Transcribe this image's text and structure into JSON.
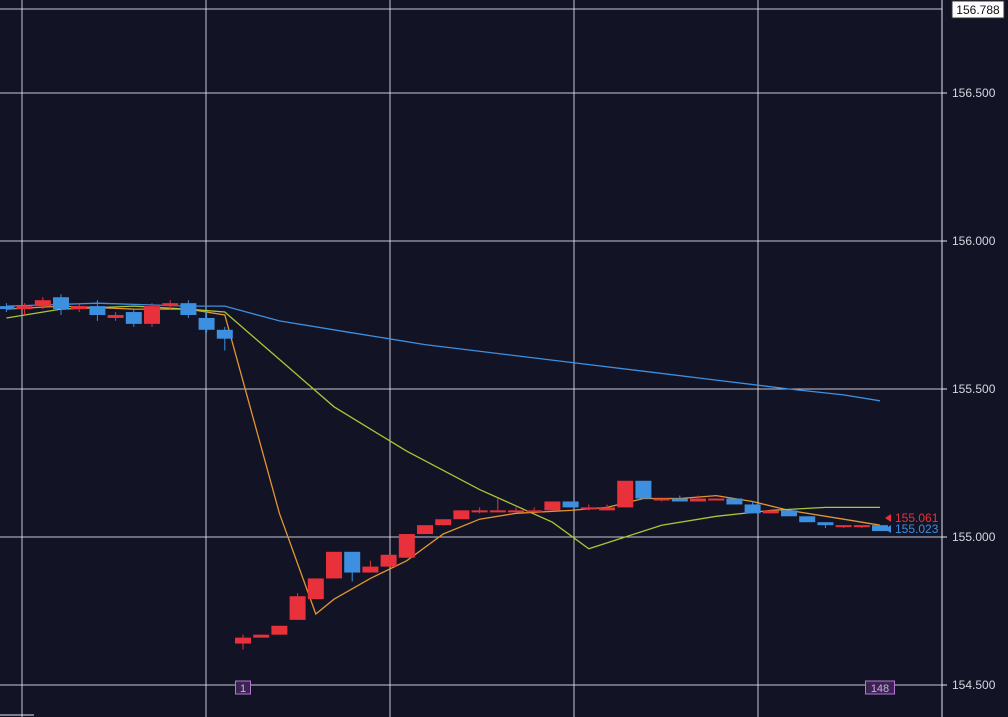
{
  "chart_data": {
    "type": "candlestick",
    "y_axis": {
      "ticks": [
        "156.500",
        "156.000",
        "155.500",
        "155.000",
        "154.500"
      ],
      "tick_values": [
        156.5,
        156.0,
        155.5,
        155.0,
        154.5
      ],
      "range": [
        154.45,
        156.788
      ],
      "top_label": "156.788",
      "position": "right"
    },
    "grid": true,
    "bar_markers": [
      {
        "label": "1",
        "index": 0
      },
      {
        "label": "148",
        "index": 35
      }
    ],
    "price_labels": [
      {
        "value": "155.061",
        "color": "#e8313a"
      },
      {
        "value": "155.023",
        "color": "#3d8fe0"
      }
    ],
    "colors": {
      "background": "#131326",
      "grid": "#e6e6ee",
      "up": "#e8313a",
      "down": "#3d8fe0",
      "ma_fast": "#e2962e",
      "ma_medium": "#a8c832",
      "ma_slow": "#3d8fe0"
    },
    "pre_gap_candles": [
      {
        "open": 155.78,
        "high": 155.79,
        "low": 155.76,
        "close": 155.77
      },
      {
        "open": 155.77,
        "high": 155.79,
        "low": 155.75,
        "close": 155.78
      },
      {
        "open": 155.78,
        "high": 155.81,
        "low": 155.77,
        "close": 155.8
      },
      {
        "open": 155.81,
        "high": 155.82,
        "low": 155.75,
        "close": 155.77
      },
      {
        "open": 155.77,
        "high": 155.79,
        "low": 155.76,
        "close": 155.78
      },
      {
        "open": 155.78,
        "high": 155.8,
        "low": 155.73,
        "close": 155.75
      },
      {
        "open": 155.74,
        "high": 155.76,
        "low": 155.73,
        "close": 155.75
      },
      {
        "open": 155.76,
        "high": 155.77,
        "low": 155.71,
        "close": 155.72
      },
      {
        "open": 155.72,
        "high": 155.79,
        "low": 155.71,
        "close": 155.78
      },
      {
        "open": 155.78,
        "high": 155.8,
        "low": 155.77,
        "close": 155.79
      },
      {
        "open": 155.79,
        "high": 155.8,
        "low": 155.74,
        "close": 155.75
      },
      {
        "open": 155.74,
        "high": 155.76,
        "low": 155.69,
        "close": 155.7
      },
      {
        "open": 155.7,
        "high": 155.71,
        "low": 155.63,
        "close": 155.67
      }
    ],
    "candles": [
      {
        "open": 154.64,
        "high": 154.67,
        "low": 154.62,
        "close": 154.66
      },
      {
        "open": 154.66,
        "high": 154.67,
        "low": 154.66,
        "close": 154.67
      },
      {
        "open": 154.67,
        "high": 154.7,
        "low": 154.67,
        "close": 154.7
      },
      {
        "open": 154.72,
        "high": 154.81,
        "low": 154.72,
        "close": 154.8
      },
      {
        "open": 154.79,
        "high": 154.86,
        "low": 154.79,
        "close": 154.86
      },
      {
        "open": 154.86,
        "high": 154.95,
        "low": 154.86,
        "close": 154.95
      },
      {
        "open": 154.95,
        "high": 154.95,
        "low": 154.85,
        "close": 154.88
      },
      {
        "open": 154.88,
        "high": 154.92,
        "low": 154.88,
        "close": 154.9
      },
      {
        "open": 154.9,
        "high": 154.93,
        "low": 154.9,
        "close": 154.94
      },
      {
        "open": 154.93,
        "high": 155.01,
        "low": 154.93,
        "close": 155.01
      },
      {
        "open": 155.01,
        "high": 155.04,
        "low": 155.01,
        "close": 155.04
      },
      {
        "open": 155.04,
        "high": 155.06,
        "low": 155.04,
        "close": 155.06
      },
      {
        "open": 155.06,
        "high": 155.09,
        "low": 155.06,
        "close": 155.09
      },
      {
        "open": 155.09,
        "high": 155.1,
        "low": 155.08,
        "close": 155.09
      },
      {
        "open": 155.09,
        "high": 155.13,
        "low": 155.09,
        "close": 155.09
      },
      {
        "open": 155.09,
        "high": 155.1,
        "low": 155.09,
        "close": 155.09
      },
      {
        "open": 155.09,
        "high": 155.1,
        "low": 155.09,
        "close": 155.09
      },
      {
        "open": 155.09,
        "high": 155.12,
        "low": 155.09,
        "close": 155.12
      },
      {
        "open": 155.12,
        "high": 155.12,
        "low": 155.1,
        "close": 155.1
      },
      {
        "open": 155.1,
        "high": 155.11,
        "low": 155.09,
        "close": 155.1
      },
      {
        "open": 155.09,
        "high": 155.11,
        "low": 155.09,
        "close": 155.1
      },
      {
        "open": 155.1,
        "high": 155.19,
        "low": 155.1,
        "close": 155.19
      },
      {
        "open": 155.19,
        "high": 155.19,
        "low": 155.13,
        "close": 155.13
      },
      {
        "open": 155.13,
        "high": 155.13,
        "low": 155.12,
        "close": 155.13
      },
      {
        "open": 155.13,
        "high": 155.14,
        "low": 155.12,
        "close": 155.12
      },
      {
        "open": 155.12,
        "high": 155.14,
        "low": 155.12,
        "close": 155.13
      },
      {
        "open": 155.13,
        "high": 155.13,
        "low": 155.13,
        "close": 155.13
      },
      {
        "open": 155.13,
        "high": 155.13,
        "low": 155.11,
        "close": 155.11
      },
      {
        "open": 155.11,
        "high": 155.12,
        "low": 155.08,
        "close": 155.08
      },
      {
        "open": 155.08,
        "high": 155.09,
        "low": 155.08,
        "close": 155.09
      },
      {
        "open": 155.09,
        "high": 155.09,
        "low": 155.07,
        "close": 155.07
      },
      {
        "open": 155.07,
        "high": 155.07,
        "low": 155.05,
        "close": 155.05
      },
      {
        "open": 155.05,
        "high": 155.05,
        "low": 155.03,
        "close": 155.04
      },
      {
        "open": 155.04,
        "high": 155.04,
        "low": 155.03,
        "close": 155.04
      },
      {
        "open": 155.04,
        "high": 155.04,
        "low": 155.03,
        "close": 155.04
      },
      {
        "open": 155.04,
        "high": 155.04,
        "low": 155.02,
        "close": 155.02
      }
    ],
    "moving_averages": [
      {
        "color_key": "ma_fast",
        "points": [
          {
            "bar": -13,
            "value": 155.77
          },
          {
            "bar": -10,
            "value": 155.78
          },
          {
            "bar": -6,
            "value": 155.77
          },
          {
            "bar": -3,
            "value": 155.77
          },
          {
            "bar": -1,
            "value": 155.75
          },
          {
            "bar": 2,
            "value": 155.08
          },
          {
            "bar": 4,
            "value": 154.74
          },
          {
            "bar": 5,
            "value": 154.79
          },
          {
            "bar": 7,
            "value": 154.86
          },
          {
            "bar": 9,
            "value": 154.92
          },
          {
            "bar": 11,
            "value": 155.01
          },
          {
            "bar": 13,
            "value": 155.06
          },
          {
            "bar": 15,
            "value": 155.08
          },
          {
            "bar": 18,
            "value": 155.09
          },
          {
            "bar": 20,
            "value": 155.1
          },
          {
            "bar": 22,
            "value": 155.13
          },
          {
            "bar": 24,
            "value": 155.13
          },
          {
            "bar": 26,
            "value": 155.14
          },
          {
            "bar": 28,
            "value": 155.12
          },
          {
            "bar": 30,
            "value": 155.09
          },
          {
            "bar": 33,
            "value": 155.06
          },
          {
            "bar": 35,
            "value": 155.04
          }
        ]
      },
      {
        "color_key": "ma_medium",
        "points": [
          {
            "bar": -13,
            "value": 155.74
          },
          {
            "bar": -10,
            "value": 155.77
          },
          {
            "bar": -6,
            "value": 155.78
          },
          {
            "bar": -3,
            "value": 155.77
          },
          {
            "bar": -1,
            "value": 155.76
          },
          {
            "bar": 2,
            "value": 155.6
          },
          {
            "bar": 5,
            "value": 155.44
          },
          {
            "bar": 9,
            "value": 155.29
          },
          {
            "bar": 13,
            "value": 155.16
          },
          {
            "bar": 17,
            "value": 155.05
          },
          {
            "bar": 19,
            "value": 154.96
          },
          {
            "bar": 21,
            "value": 155.0
          },
          {
            "bar": 23,
            "value": 155.04
          },
          {
            "bar": 26,
            "value": 155.07
          },
          {
            "bar": 29,
            "value": 155.09
          },
          {
            "bar": 32,
            "value": 155.1
          },
          {
            "bar": 35,
            "value": 155.1
          }
        ]
      },
      {
        "color_key": "ma_slow",
        "points": [
          {
            "bar": -13,
            "value": 155.78
          },
          {
            "bar": -8,
            "value": 155.79
          },
          {
            "bar": -3,
            "value": 155.78
          },
          {
            "bar": -1,
            "value": 155.78
          },
          {
            "bar": 2,
            "value": 155.73
          },
          {
            "bar": 6,
            "value": 155.69
          },
          {
            "bar": 10,
            "value": 155.65
          },
          {
            "bar": 14,
            "value": 155.62
          },
          {
            "bar": 18,
            "value": 155.59
          },
          {
            "bar": 22,
            "value": 155.56
          },
          {
            "bar": 26,
            "value": 155.53
          },
          {
            "bar": 30,
            "value": 155.5
          },
          {
            "bar": 33,
            "value": 155.48
          },
          {
            "bar": 35,
            "value": 155.46
          }
        ]
      }
    ]
  }
}
